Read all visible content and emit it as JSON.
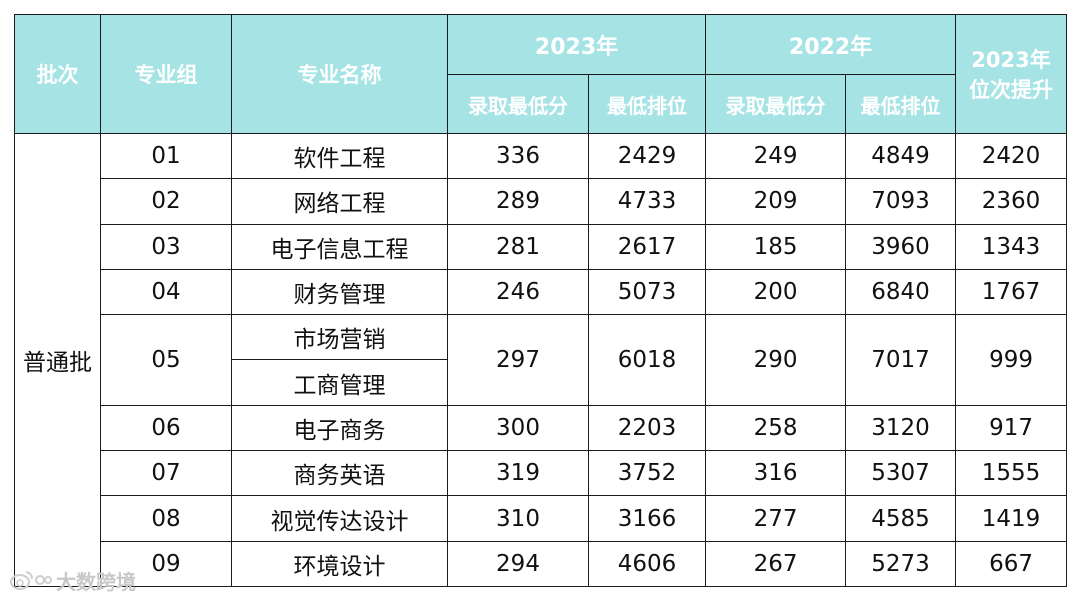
{
  "header": {
    "batch": "批次",
    "group": "专业组",
    "major_name": "专业名称",
    "year_2023": "2023年",
    "year_2022": "2022年",
    "improve_line1": "2023年",
    "improve_line2": "位次提升",
    "min_score": "录取最低分",
    "min_rank": "最低排位"
  },
  "batch_value": "普通批",
  "rows": [
    {
      "group": "01",
      "majors": [
        "软件工程"
      ],
      "s2023": "336",
      "r2023": "2429",
      "s2022": "249",
      "r2022": "4849",
      "improve": "2420"
    },
    {
      "group": "02",
      "majors": [
        "网络工程"
      ],
      "s2023": "289",
      "r2023": "4733",
      "s2022": "209",
      "r2022": "7093",
      "improve": "2360"
    },
    {
      "group": "03",
      "majors": [
        "电子信息工程"
      ],
      "s2023": "281",
      "r2023": "2617",
      "s2022": "185",
      "r2022": "3960",
      "improve": "1343"
    },
    {
      "group": "04",
      "majors": [
        "财务管理"
      ],
      "s2023": "246",
      "r2023": "5073",
      "s2022": "200",
      "r2022": "6840",
      "improve": "1767"
    },
    {
      "group": "05",
      "majors": [
        "市场营销",
        "工商管理"
      ],
      "s2023": "297",
      "r2023": "6018",
      "s2022": "290",
      "r2022": "7017",
      "improve": "999"
    },
    {
      "group": "06",
      "majors": [
        "电子商务"
      ],
      "s2023": "300",
      "r2023": "2203",
      "s2022": "258",
      "r2022": "3120",
      "improve": "917"
    },
    {
      "group": "07",
      "majors": [
        "商务英语"
      ],
      "s2023": "319",
      "r2023": "3752",
      "s2022": "316",
      "r2022": "5307",
      "improve": "1555"
    },
    {
      "group": "08",
      "majors": [
        "视觉传达设计"
      ],
      "s2023": "310",
      "r2023": "3166",
      "s2022": "277",
      "r2022": "4585",
      "improve": "1419"
    },
    {
      "group": "09",
      "majors": [
        "环境设计"
      ],
      "s2023": "294",
      "r2023": "4606",
      "s2022": "267",
      "r2022": "5273",
      "improve": "667"
    }
  ],
  "watermark": {
    "icon": "weibo-logo-icon",
    "text": "大数跨境"
  }
}
